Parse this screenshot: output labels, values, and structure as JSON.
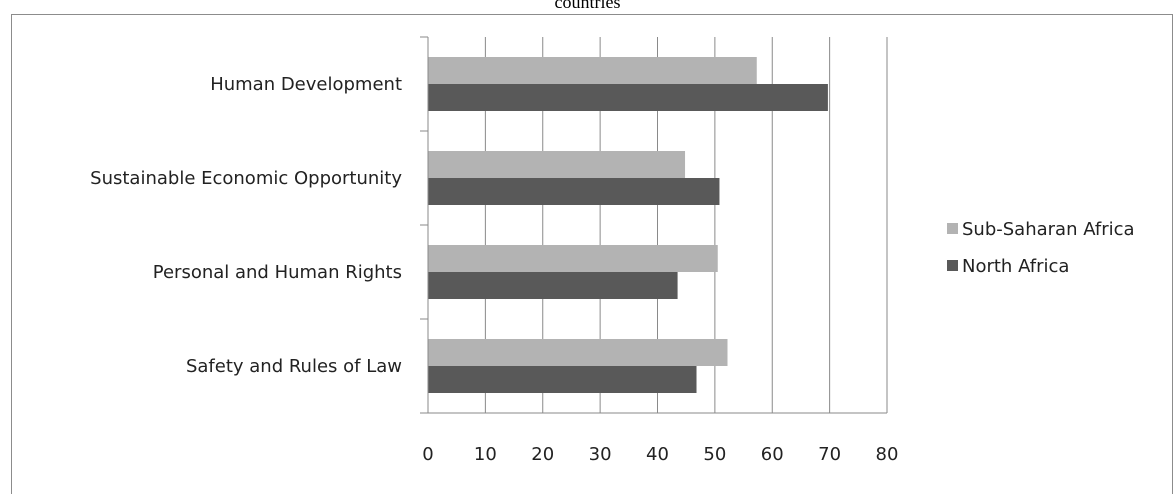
{
  "chart_data": {
    "type": "bar",
    "orientation": "horizontal",
    "title": "countries",
    "categories": [
      "Human Development",
      "Sustainable Economic Opportunity",
      "Personal and Human Rights",
      "Safety and Rules of Law"
    ],
    "series": [
      {
        "name": "Sub-Saharan Africa",
        "values": [
          57.3,
          44.8,
          50.5,
          52.2
        ],
        "color": "#b3b3b3"
      },
      {
        "name": "North Africa",
        "values": [
          69.7,
          50.8,
          43.5,
          46.8
        ],
        "color": "#595959"
      }
    ],
    "xlim": [
      0,
      80
    ],
    "xticks": [
      0,
      10,
      20,
      30,
      40,
      50,
      60,
      70,
      80
    ],
    "xlabel": "",
    "ylabel": "",
    "grid": true,
    "legend_position": "right"
  }
}
